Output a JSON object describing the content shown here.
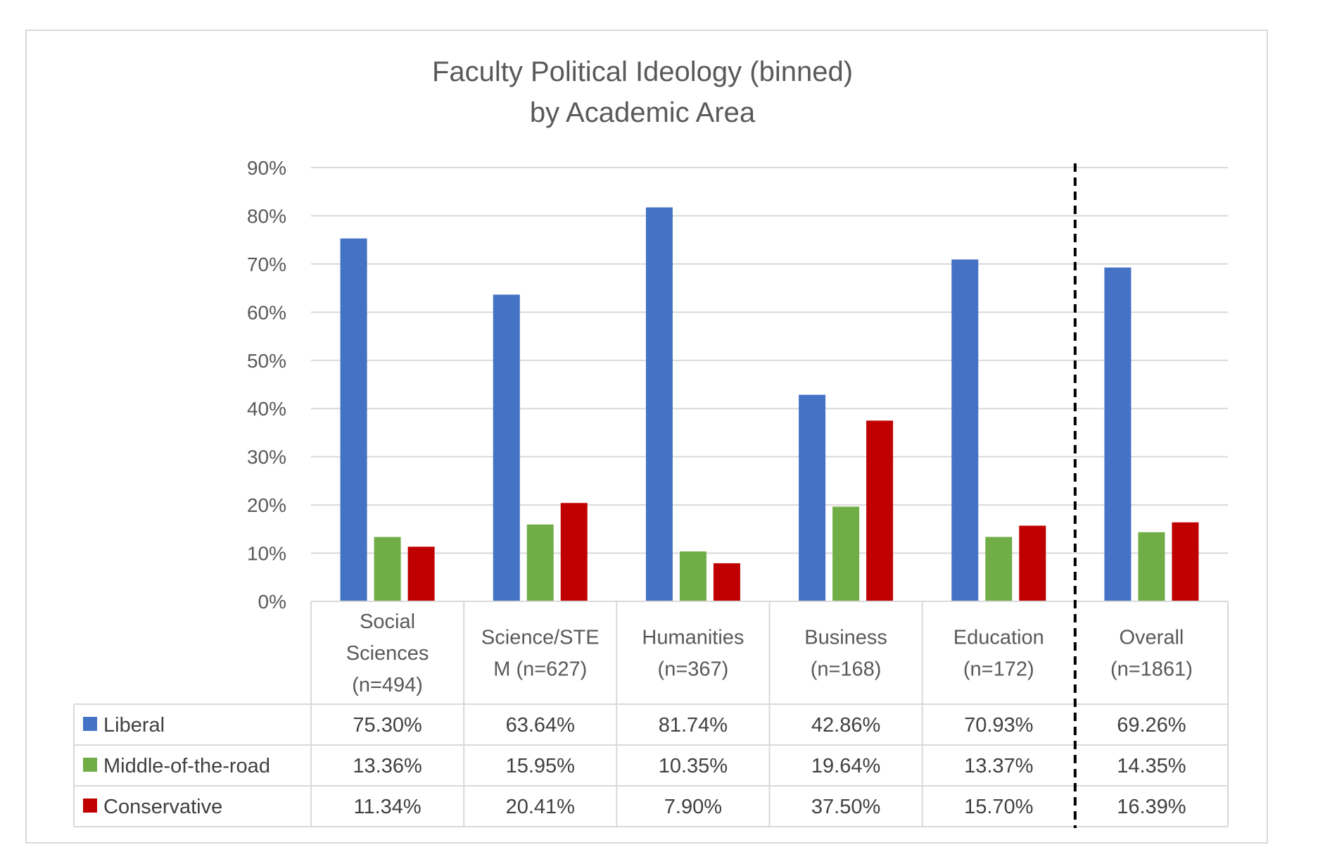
{
  "chart_data": {
    "type": "bar",
    "title": [
      "Faculty Political Ideology (binned)",
      "by Academic Area"
    ],
    "categories": [
      [
        "Social",
        "Sciences",
        "(n=494)"
      ],
      [
        "Science/STE",
        "M (n=627)"
      ],
      [
        "Humanities",
        "(n=367)"
      ],
      [
        "Business",
        "(n=168)"
      ],
      [
        "Education",
        "(n=172)"
      ],
      [
        "Overall",
        "(n=1861)"
      ]
    ],
    "series": [
      {
        "name": "Liberal",
        "color": "#4472c4",
        "values": [
          75.3,
          63.64,
          81.74,
          42.86,
          70.93,
          69.26
        ],
        "labels": [
          "75.30%",
          "63.64%",
          "81.74%",
          "42.86%",
          "70.93%",
          "69.26%"
        ]
      },
      {
        "name": "Middle-of-the-road",
        "color": "#70ad47",
        "values": [
          13.36,
          15.95,
          10.35,
          19.64,
          13.37,
          14.35
        ],
        "labels": [
          "13.36%",
          "15.95%",
          "10.35%",
          "19.64%",
          "13.37%",
          "14.35%"
        ]
      },
      {
        "name": "Conservative",
        "color": "#c00000",
        "values": [
          11.34,
          20.41,
          7.9,
          37.5,
          15.7,
          16.39
        ],
        "labels": [
          "11.34%",
          "20.41%",
          "7.90%",
          "37.50%",
          "15.70%",
          "16.39%"
        ]
      }
    ],
    "yticks": [
      "0%",
      "10%",
      "20%",
      "30%",
      "40%",
      "50%",
      "60%",
      "70%",
      "80%",
      "90%"
    ],
    "ylim": [
      0,
      90
    ],
    "grid": true,
    "legend": "data-table",
    "annotations": [
      "dashed vertical separator before Overall"
    ]
  }
}
